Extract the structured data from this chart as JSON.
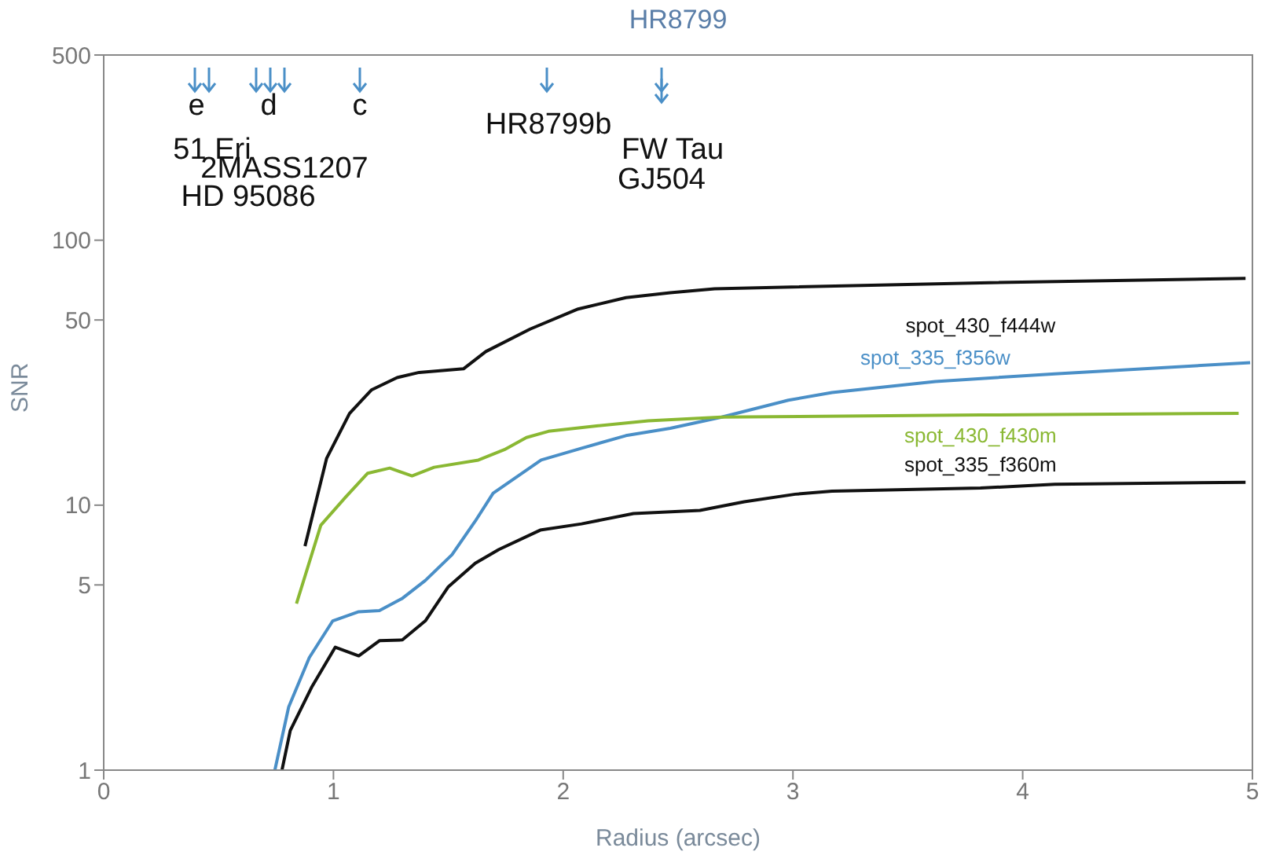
{
  "chart_data": {
    "type": "line",
    "title": "HR8799",
    "xlabel": "Radius (arcsec)",
    "ylabel": "SNR",
    "log": "y",
    "xlim": [
      0,
      5
    ],
    "xticks": [
      0,
      1,
      2,
      3,
      4,
      5
    ],
    "ylim": [
      1,
      500
    ],
    "yticks": [
      1,
      5,
      10,
      50,
      100,
      500
    ],
    "legend": false,
    "marker": "none",
    "line_style": "solid",
    "series": [
      {
        "name": "spot_430_f444w",
        "color": "#111111",
        "x": [
          0.876,
          0.97,
          1.07,
          1.165,
          1.277,
          1.373,
          1.566,
          1.663,
          1.856,
          2.065,
          2.273,
          2.466,
          2.659,
          3.816,
          4.97
        ],
        "values": [
          7.0,
          15.0,
          22.2,
          27.2,
          30.3,
          31.7,
          32.7,
          38,
          46.2,
          55,
          60.7,
          63.4,
          65.6,
          69,
          71.8
        ]
      },
      {
        "name": "spot_335_f356w",
        "color": "#4a8fc7",
        "x": [
          0.745,
          0.805,
          0.895,
          0.997,
          1.11,
          1.2,
          1.3,
          1.4,
          1.516,
          1.617,
          1.695,
          1.904,
          2.08,
          2.273,
          2.466,
          2.69,
          2.98,
          3.17,
          3.62,
          4.14,
          4.99
        ],
        "values": [
          1.0,
          1.73,
          2.66,
          3.66,
          3.96,
          4.0,
          4.45,
          5.2,
          6.5,
          8.7,
          11.1,
          14.8,
          16.4,
          18.3,
          19.5,
          21.5,
          24.9,
          26.6,
          29.3,
          31.3,
          34.5
        ]
      },
      {
        "name": "spot_430_f430m",
        "color": "#8ab833",
        "x": [
          0.839,
          0.945,
          1.052,
          1.149,
          1.245,
          1.342,
          1.438,
          1.631,
          1.744,
          1.84,
          1.936,
          2.145,
          2.37,
          2.69,
          3.816,
          4.94
        ],
        "values": [
          4.25,
          8.4,
          10.7,
          13.2,
          13.8,
          12.9,
          13.9,
          14.8,
          16.2,
          18.0,
          19.0,
          19.9,
          20.8,
          21.5,
          21.9,
          22.2
        ]
      },
      {
        "name": "spot_335_f360m",
        "color": "#111111",
        "x": [
          0.776,
          0.812,
          0.907,
          1.008,
          1.11,
          1.2,
          1.3,
          1.4,
          1.5,
          1.617,
          1.72,
          1.9,
          2.08,
          2.306,
          2.595,
          2.788,
          3.01,
          3.17,
          3.816,
          4.14,
          4.97
        ],
        "values": [
          1.0,
          1.41,
          2.07,
          2.91,
          2.7,
          3.08,
          3.1,
          3.66,
          4.92,
          6.04,
          6.8,
          8.05,
          8.5,
          9.3,
          9.55,
          10.3,
          11.0,
          11.3,
          11.6,
          12.0,
          12.2
        ]
      }
    ],
    "annotations": [
      "e",
      "d",
      "c",
      "HR8799b",
      "51 Eri",
      "FW Tau",
      "2MASS1207",
      "GJ504",
      "HD 95086"
    ]
  }
}
